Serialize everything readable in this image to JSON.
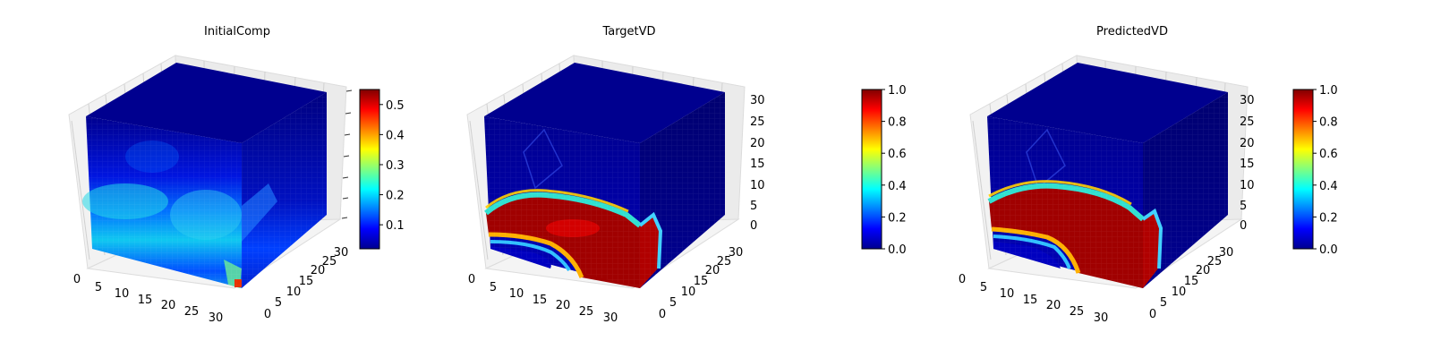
{
  "chart_data": [
    {
      "type": "3d-voxel",
      "title": "InitialComp",
      "x_ticks": [
        "0",
        "5",
        "10",
        "15",
        "20",
        "25",
        "30"
      ],
      "y_ticks": [
        "0",
        "5",
        "10",
        "15",
        "20",
        "25",
        "30"
      ],
      "z_ticks": [
        "",
        "",
        "",
        "",
        "",
        "",
        ""
      ],
      "xlim": [
        0,
        32
      ],
      "ylim": [
        0,
        32
      ],
      "zlim": [
        0,
        32
      ],
      "grid": true,
      "colormap": "jet",
      "colorbar": {
        "ticks": [
          "0.1",
          "0.2",
          "0.3",
          "0.4",
          "0.5"
        ],
        "values": [
          0.1,
          0.2,
          0.3,
          0.4,
          0.5
        ],
        "range": [
          0.02,
          0.55
        ]
      }
    },
    {
      "type": "3d-voxel",
      "title": "TargetVD",
      "x_ticks": [
        "0",
        "5",
        "10",
        "15",
        "20",
        "25",
        "30"
      ],
      "y_ticks": [
        "0",
        "5",
        "10",
        "15",
        "20",
        "25",
        "30"
      ],
      "z_ticks": [
        "0",
        "5",
        "10",
        "15",
        "20",
        "25",
        "30"
      ],
      "xlim": [
        0,
        32
      ],
      "ylim": [
        0,
        32
      ],
      "zlim": [
        0,
        32
      ],
      "grid": true,
      "colormap": "jet",
      "colorbar": {
        "ticks": [
          "0.0",
          "0.2",
          "0.4",
          "0.6",
          "0.8",
          "1.0"
        ],
        "values": [
          0,
          0.2,
          0.4,
          0.6,
          0.8,
          1.0
        ],
        "range": [
          0,
          1
        ]
      }
    },
    {
      "type": "3d-voxel",
      "title": "PredictedVD",
      "x_ticks": [
        "0",
        "5",
        "10",
        "15",
        "20",
        "25",
        "30"
      ],
      "y_ticks": [
        "0",
        "5",
        "10",
        "15",
        "20",
        "25",
        "30"
      ],
      "z_ticks": [
        "0",
        "5",
        "10",
        "15",
        "20",
        "25",
        "30"
      ],
      "xlim": [
        0,
        32
      ],
      "ylim": [
        0,
        32
      ],
      "zlim": [
        0,
        32
      ],
      "grid": true,
      "colormap": "jet",
      "colorbar": {
        "ticks": [
          "0.0",
          "0.2",
          "0.4",
          "0.6",
          "0.8",
          "1.0"
        ],
        "values": [
          0,
          0.2,
          0.4,
          0.6,
          0.8,
          1.0
        ],
        "range": [
          0,
          1
        ]
      }
    }
  ]
}
